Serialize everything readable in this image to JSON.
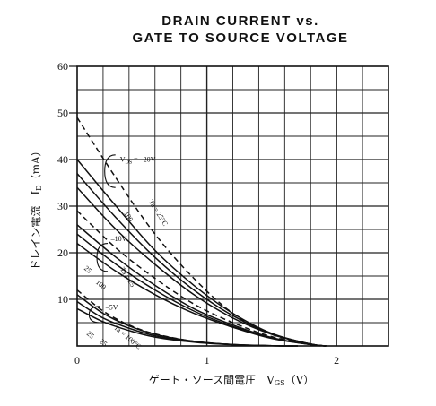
{
  "chart_data": {
    "type": "line",
    "title_lines": [
      "DRAIN CURRENT vs.",
      "GATE TO SOURCE VOLTAGE"
    ],
    "xlabel": "ゲート・ソース間電圧　V",
    "xlabel_sub": "GS",
    "xlabel_unit": "（V）",
    "ylabel": "ドレイン電流　I",
    "ylabel_sub": "D",
    "ylabel_unit": "（mA）",
    "xlim": [
      0,
      2.4
    ],
    "ylim": [
      0,
      60
    ],
    "x_ticks": [
      {
        "v": 0,
        "label": "0"
      },
      {
        "v": 1,
        "label": "1"
      },
      {
        "v": 2,
        "label": "2"
      }
    ],
    "y_ticks": [
      {
        "v": 10,
        "label": "10"
      },
      {
        "v": 20,
        "label": "20"
      },
      {
        "v": 30,
        "label": "30"
      },
      {
        "v": 40,
        "label": "40"
      },
      {
        "v": 50,
        "label": "50"
      },
      {
        "v": 60,
        "label": "60"
      }
    ],
    "grid": true,
    "series": [
      {
        "style": "dashed",
        "x": [
          0,
          0.3,
          0.6,
          0.9,
          1.2,
          1.5,
          1.8,
          1.92
        ],
        "y": [
          49,
          36,
          24,
          14.5,
          7,
          2.5,
          0.3,
          0
        ]
      },
      {
        "style": "solid",
        "x": [
          0,
          0.3,
          0.6,
          0.9,
          1.2,
          1.5,
          1.8,
          1.92
        ],
        "y": [
          40,
          30,
          20.5,
          13,
          7,
          2.7,
          0.4,
          0
        ]
      },
      {
        "style": "solid",
        "x": [
          0,
          0.3,
          0.6,
          0.9,
          1.2,
          1.5,
          1.8,
          1.92
        ],
        "y": [
          37,
          27.5,
          19,
          12,
          6.5,
          2.6,
          0.4,
          0
        ]
      },
      {
        "style": "solid",
        "x": [
          0,
          0.3,
          0.6,
          0.9,
          1.2,
          1.5,
          1.8,
          1.92
        ],
        "y": [
          34,
          25,
          17.5,
          11,
          6,
          2.5,
          0.4,
          0
        ]
      },
      {
        "style": "dashed",
        "x": [
          0,
          0.3,
          0.6,
          0.9,
          1.2,
          1.5,
          1.8,
          1.92
        ],
        "y": [
          29,
          21,
          14.5,
          9,
          5,
          2,
          0.3,
          0
        ]
      },
      {
        "style": "solid",
        "x": [
          0,
          0.3,
          0.6,
          0.9,
          1.2,
          1.5,
          1.8,
          1.92
        ],
        "y": [
          26,
          19,
          13,
          8,
          4.5,
          1.8,
          0.3,
          0
        ]
      },
      {
        "style": "solid",
        "x": [
          0,
          0.3,
          0.6,
          0.9,
          1.2,
          1.5,
          1.8,
          1.92
        ],
        "y": [
          24,
          17.5,
          12,
          7.5,
          4.2,
          1.7,
          0.3,
          0
        ]
      },
      {
        "style": "solid",
        "x": [
          0,
          0.3,
          0.6,
          0.9,
          1.2,
          1.5,
          1.8,
          1.92
        ],
        "y": [
          22,
          16,
          11,
          7,
          4,
          1.6,
          0.3,
          0
        ]
      },
      {
        "style": "dashed",
        "x": [
          0,
          0.2,
          0.4,
          0.6,
          0.9,
          1.2,
          1.5,
          1.7
        ],
        "y": [
          12,
          7.5,
          4.5,
          2.6,
          1,
          0.3,
          0.05,
          0
        ]
      },
      {
        "style": "solid",
        "x": [
          0,
          0.2,
          0.4,
          0.6,
          0.9,
          1.2,
          1.5,
          1.7
        ],
        "y": [
          11,
          7,
          4.3,
          2.5,
          1,
          0.3,
          0.05,
          0
        ]
      },
      {
        "style": "solid",
        "x": [
          0,
          0.2,
          0.4,
          0.6,
          0.9,
          1.2,
          1.5,
          1.7
        ],
        "y": [
          9.5,
          6,
          3.8,
          2.2,
          0.9,
          0.3,
          0.05,
          0
        ]
      },
      {
        "style": "solid",
        "x": [
          0,
          0.2,
          0.4,
          0.6,
          0.9,
          1.2,
          1.5,
          1.7
        ],
        "y": [
          8,
          5.2,
          3.3,
          1.9,
          0.8,
          0.25,
          0.05,
          0
        ]
      }
    ],
    "annotations": [
      {
        "text": "V",
        "sub": "DS",
        "rest": " = –20V",
        "x": 0.33,
        "y": 39.5
      },
      {
        "text": "Ta = 25°C",
        "x": 0.55,
        "y": 31,
        "rotate": 58
      },
      {
        "text": "100",
        "x": 0.36,
        "y": 28.5,
        "rotate": 58
      },
      {
        "text": "–10V",
        "x": 0.26,
        "y": 22.5
      },
      {
        "text": "Ta = 25",
        "x": 0.33,
        "y": 16.5,
        "rotate": 58
      },
      {
        "text": "25",
        "x": 0.05,
        "y": 16.5,
        "rotate": 40
      },
      {
        "text": "100",
        "x": 0.14,
        "y": 13.5,
        "rotate": 40
      },
      {
        "text": "–5V",
        "x": 0.22,
        "y": 7.8
      },
      {
        "text": "Ta = 100°C",
        "x": 0.28,
        "y": 3.8,
        "rotate": 40
      },
      {
        "text": "25",
        "x": 0.07,
        "y": 2.5,
        "rotate": 40
      },
      {
        "text": "25",
        "x": 0.17,
        "y": 0.8,
        "rotate": 40
      }
    ]
  }
}
